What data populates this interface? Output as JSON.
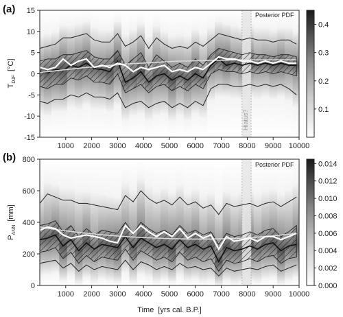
{
  "chart_data": [
    {
      "type": "area",
      "panel_label": "(a)",
      "ylabel_main": "T",
      "ylabel_sub": "DJF",
      "ylabel_unit": "[°C]",
      "xlim": [
        0,
        10000
      ],
      "ylim": [
        -15,
        15
      ],
      "x_ticks": [
        1000,
        2000,
        3000,
        4000,
        5000,
        6000,
        7000,
        8000,
        9000,
        10000
      ],
      "y_ticks": [
        -15,
        -10,
        -5,
        0,
        5,
        10,
        15
      ],
      "legend_title": "Posterior PDF",
      "colorbar_ticks": [
        "0.1",
        "0.2",
        "0.3",
        "0.4"
      ],
      "colorbar_values": [
        0.1,
        0.2,
        0.3,
        0.4
      ],
      "colorbar_range": [
        0.0,
        0.45
      ],
      "hiatus_label": "Hiatus?",
      "hiatus_x": [
        7800,
        8150
      ],
      "x": [
        0,
        300,
        600,
        900,
        1200,
        1500,
        1800,
        2100,
        2400,
        2700,
        3000,
        3300,
        3600,
        3900,
        4200,
        4500,
        4800,
        5100,
        5400,
        5700,
        6000,
        6300,
        6600,
        6900,
        7200,
        7500,
        7800,
        8100,
        8400,
        8700,
        9000,
        9300,
        9600,
        9900
      ],
      "median": [
        0.5,
        0.2,
        1.0,
        0.8,
        2.0,
        1.5,
        2.5,
        1.2,
        1.0,
        0.5,
        3.0,
        -2.0,
        -1.0,
        0.5,
        -2.0,
        -0.5,
        0.0,
        -1.5,
        -0.5,
        -1.5,
        0.0,
        -1.0,
        2.0,
        3.5,
        2.0,
        2.5,
        2.0,
        2.5,
        2.0,
        2.5,
        2.0,
        2.5,
        2.0,
        2.0
      ],
      "mean": [
        1.5,
        1.0,
        1.5,
        3.5,
        2.0,
        3.0,
        3.5,
        1.5,
        2.0,
        1.5,
        2.5,
        2.0,
        0.5,
        1.5,
        1.0,
        1.5,
        2.0,
        0.5,
        1.0,
        0.5,
        1.5,
        1.0,
        2.5,
        4.0,
        3.5,
        3.5,
        3.0,
        3.0,
        2.5,
        3.0,
        2.5,
        3.0,
        2.5,
        2.5
      ],
      "trend": [
        0.3,
        0.5,
        0.7,
        0.9,
        1.1,
        1.3,
        1.5,
        1.6,
        1.8,
        2.0,
        2.1,
        2.3,
        2.4,
        2.5,
        2.6,
        2.7,
        2.8,
        2.9,
        3.0,
        3.0,
        3.1,
        3.1,
        3.2,
        3.2,
        3.2,
        3.3,
        3.3,
        3.3,
        3.3,
        3.3,
        3.3,
        3.3,
        3.3,
        3.3
      ],
      "band_inner_low": [
        -3.0,
        -3.5,
        -2.5,
        -2.5,
        -1.0,
        -1.5,
        -0.5,
        -2.0,
        -2.0,
        -2.5,
        0.0,
        -4.5,
        -3.5,
        -2.5,
        -4.5,
        -3.0,
        -2.5,
        -4.0,
        -3.0,
        -4.0,
        -2.5,
        -3.5,
        0.0,
        1.0,
        0.5,
        0.5,
        0.0,
        0.5,
        0.0,
        0.5,
        0.0,
        0.5,
        0.0,
        -0.5
      ],
      "band_inner_high": [
        3.0,
        3.5,
        3.5,
        4.5,
        4.5,
        5.0,
        5.5,
        4.0,
        3.5,
        3.5,
        5.5,
        2.0,
        3.5,
        5.0,
        1.5,
        4.5,
        3.0,
        1.5,
        2.5,
        1.5,
        3.5,
        2.0,
        4.5,
        6.0,
        5.5,
        5.0,
        4.5,
        5.0,
        4.5,
        4.5,
        4.0,
        4.5,
        4.5,
        4.0
      ],
      "band_outer_low": [
        -6.5,
        -7.0,
        -6.0,
        -6.0,
        -5.0,
        -5.5,
        -4.5,
        -5.5,
        -5.5,
        -6.0,
        -4.5,
        -8.0,
        -7.0,
        -6.5,
        -8.0,
        -7.0,
        -6.5,
        -8.0,
        -7.0,
        -8.0,
        -6.5,
        -7.5,
        -3.5,
        -2.5,
        -2.5,
        -3.0,
        -3.0,
        -2.5,
        -3.0,
        -2.5,
        -3.0,
        -2.5,
        -3.5,
        -5.0
      ],
      "band_outer_high": [
        6.0,
        6.5,
        7.0,
        8.5,
        8.5,
        9.0,
        9.5,
        8.0,
        7.5,
        7.5,
        9.5,
        6.5,
        7.5,
        9.0,
        6.0,
        8.5,
        7.0,
        6.0,
        6.5,
        6.0,
        7.5,
        6.5,
        8.0,
        9.5,
        9.0,
        8.5,
        8.0,
        8.5,
        8.0,
        8.0,
        7.5,
        8.0,
        8.0,
        7.0
      ]
    },
    {
      "type": "area",
      "panel_label": "(b)",
      "ylabel_main": "P",
      "ylabel_sub": "ANN",
      "ylabel_unit": "[mm]",
      "xlabel": "Time",
      "xlabel_unit": "[yrs cal. B.P.]",
      "xlim": [
        0,
        10000
      ],
      "ylim": [
        0,
        800
      ],
      "x_ticks": [
        1000,
        2000,
        3000,
        4000,
        5000,
        6000,
        7000,
        8000,
        9000,
        10000
      ],
      "x_tick_labels": [
        "1000",
        "2000",
        "3000",
        "4000",
        "5000",
        "6000",
        "7000",
        "8000",
        "9000",
        "10000"
      ],
      "y_ticks": [
        0,
        200,
        400,
        600,
        800
      ],
      "legend_title": "Posterior PDF",
      "colorbar_ticks": [
        "0.000",
        "0.002",
        "0.004",
        "0.006",
        "0.008",
        "0.010",
        "0.012",
        "0.014"
      ],
      "colorbar_values": [
        0.0,
        0.002,
        0.004,
        0.006,
        0.008,
        0.01,
        0.012,
        0.014
      ],
      "colorbar_range": [
        0.0,
        0.0145
      ],
      "hiatus_x": [
        7800,
        8150
      ],
      "x": [
        0,
        300,
        600,
        900,
        1200,
        1500,
        1800,
        2100,
        2400,
        2700,
        3000,
        3300,
        3600,
        3900,
        4200,
        4500,
        4800,
        5100,
        5400,
        5700,
        6000,
        6300,
        6600,
        6900,
        7200,
        7500,
        7800,
        8100,
        8400,
        8700,
        9000,
        9300,
        9600,
        9900
      ],
      "median": [
        290,
        300,
        320,
        250,
        290,
        220,
        270,
        230,
        260,
        250,
        240,
        310,
        240,
        300,
        270,
        240,
        260,
        230,
        290,
        240,
        260,
        230,
        250,
        150,
        240,
        220,
        230,
        250,
        230,
        260,
        270,
        220,
        250,
        260
      ],
      "mean": [
        350,
        370,
        360,
        320,
        300,
        310,
        320,
        310,
        300,
        280,
        270,
        380,
        330,
        380,
        340,
        310,
        340,
        310,
        360,
        300,
        330,
        300,
        320,
        230,
        310,
        280,
        290,
        300,
        280,
        310,
        310,
        290,
        310,
        330
      ],
      "trend": [
        370,
        362,
        355,
        348,
        342,
        336,
        331,
        326,
        321,
        317,
        313,
        310,
        307,
        304,
        302,
        300,
        298,
        296,
        295,
        294,
        294,
        294,
        294,
        295,
        296,
        298,
        300,
        303,
        306,
        310,
        314,
        319,
        324,
        330
      ],
      "band_inner_low": [
        210,
        220,
        240,
        170,
        210,
        140,
        190,
        150,
        180,
        170,
        160,
        230,
        160,
        220,
        190,
        160,
        180,
        150,
        210,
        160,
        180,
        150,
        170,
        90,
        160,
        140,
        150,
        170,
        150,
        180,
        190,
        140,
        170,
        180
      ],
      "band_inner_high": [
        380,
        390,
        410,
        340,
        380,
        310,
        360,
        320,
        350,
        340,
        330,
        400,
        330,
        400,
        360,
        330,
        350,
        320,
        380,
        330,
        350,
        320,
        340,
        260,
        330,
        310,
        320,
        340,
        320,
        350,
        360,
        310,
        340,
        380
      ],
      "band_outer_low": [
        140,
        150,
        160,
        110,
        140,
        90,
        130,
        100,
        120,
        110,
        100,
        160,
        100,
        150,
        130,
        100,
        120,
        100,
        140,
        110,
        120,
        100,
        110,
        60,
        110,
        90,
        100,
        110,
        100,
        120,
        130,
        90,
        110,
        130
      ],
      "band_outer_high": [
        520,
        580,
        560,
        540,
        540,
        520,
        520,
        510,
        500,
        490,
        480,
        570,
        530,
        600,
        550,
        520,
        540,
        510,
        560,
        510,
        530,
        490,
        510,
        450,
        520,
        500,
        510,
        520,
        500,
        520,
        530,
        500,
        530,
        560
      ]
    }
  ]
}
